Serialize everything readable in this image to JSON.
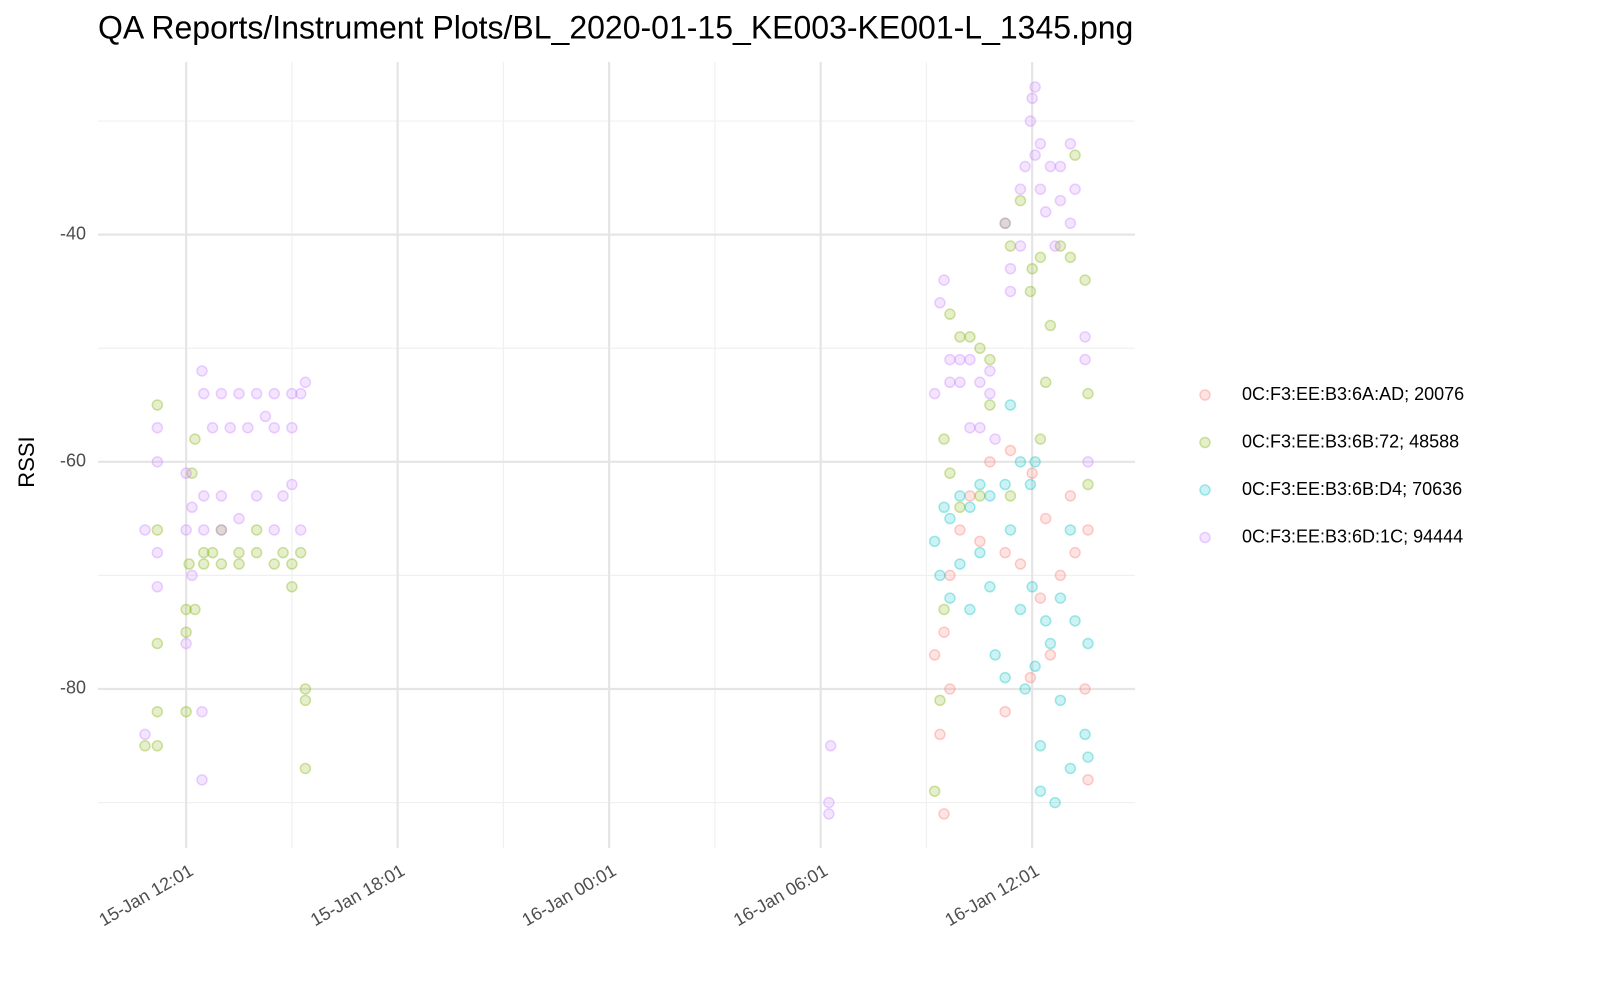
{
  "chart_data": {
    "type": "scatter",
    "title": "QA Reports/Instrument Plots/BL_2020-01-15_KE003-KE001-L_1345.png",
    "y_label": "RSSI",
    "xlim": [
      "15-Jan 09:31",
      "16-Jan 14:56"
    ],
    "xticks": [
      "15-Jan 12:01",
      "15-Jan 18:01",
      "16-Jan 00:01",
      "16-Jan 06:01",
      "16-Jan 12:01"
    ],
    "x_minor_ticks": [
      "15-Jan 15:01",
      "15-Jan 21:01",
      "16-Jan 03:01",
      "16-Jan 09:01"
    ],
    "ylim": [
      -94,
      -24.8
    ],
    "yticks": [
      -80,
      -60,
      -40
    ],
    "y_minor_ticks": [
      -90,
      -70,
      -50,
      -30
    ],
    "grid": true,
    "legend_position": "right",
    "series": [
      {
        "name": "0C:F3:EE:B3:6A:AD; 20076",
        "color": "#F8766D",
        "x": [
          "16-Jan 09:15",
          "16-Jan 09:24",
          "16-Jan 09:31",
          "16-Jan 09:31",
          "16-Jan 09:41",
          "16-Jan 09:41",
          "16-Jan 09:58",
          "16-Jan 10:15",
          "16-Jan 10:32",
          "16-Jan 10:49",
          "16-Jan 11:15",
          "16-Jan 11:15",
          "16-Jan 11:24",
          "16-Jan 11:41",
          "16-Jan 11:58",
          "16-Jan 12:01",
          "16-Jan 12:15",
          "16-Jan 12:24",
          "16-Jan 12:32",
          "16-Jan 12:49",
          "16-Jan 13:06",
          "16-Jan 13:14",
          "16-Jan 13:31",
          "16-Jan 13:36",
          "16-Jan 13:36"
        ],
        "values": [
          -77,
          -84,
          -91,
          -75,
          -80,
          -70,
          -66,
          -63,
          -67,
          -60,
          -82,
          -68,
          -59,
          -69,
          -79,
          -61,
          -72,
          -65,
          -77,
          -70,
          -63,
          -68,
          -80,
          -88,
          -66
        ]
      },
      {
        "name": "0C:F3:EE:B3:6B:72; 48588",
        "color": "#7CAE00",
        "x": [
          "15-Jan 10:51",
          "15-Jan 11:12",
          "15-Jan 11:12",
          "15-Jan 11:12",
          "15-Jan 11:12",
          "15-Jan 11:12",
          "15-Jan 12:01",
          "15-Jan 12:01",
          "15-Jan 12:01",
          "15-Jan 12:06",
          "15-Jan 12:11",
          "15-Jan 12:16",
          "15-Jan 12:16",
          "15-Jan 12:31",
          "15-Jan 12:31",
          "15-Jan 12:46",
          "15-Jan 13:01",
          "15-Jan 13:01",
          "15-Jan 13:31",
          "15-Jan 13:31",
          "15-Jan 14:01",
          "15-Jan 14:01",
          "15-Jan 14:31",
          "15-Jan 14:46",
          "15-Jan 15:01",
          "15-Jan 15:01",
          "15-Jan 15:16",
          "15-Jan 15:24",
          "15-Jan 15:24",
          "15-Jan 15:24",
          "16-Jan 09:15",
          "16-Jan 09:24",
          "16-Jan 09:31",
          "16-Jan 09:31",
          "16-Jan 09:41",
          "16-Jan 09:41",
          "16-Jan 09:58",
          "16-Jan 09:58",
          "16-Jan 10:15",
          "16-Jan 10:32",
          "16-Jan 10:32",
          "16-Jan 10:49",
          "16-Jan 10:49",
          "16-Jan 11:15",
          "16-Jan 11:24",
          "16-Jan 11:24",
          "16-Jan 11:41",
          "16-Jan 11:58",
          "16-Jan 12:01",
          "16-Jan 12:15",
          "16-Jan 12:15",
          "16-Jan 12:24",
          "16-Jan 12:32",
          "16-Jan 12:49",
          "16-Jan 13:06",
          "16-Jan 13:14",
          "16-Jan 13:31",
          "16-Jan 13:36",
          "16-Jan 13:36"
        ],
        "values": [
          -85,
          -55,
          -66,
          -76,
          -82,
          -85,
          -73,
          -75,
          -82,
          -69,
          -61,
          -58,
          -73,
          -68,
          -69,
          -68,
          -66,
          -69,
          -68,
          -69,
          -66,
          -68,
          -69,
          -68,
          -71,
          -69,
          -68,
          -80,
          -81,
          -87,
          -89,
          -81,
          -73,
          -58,
          -47,
          -61,
          -49,
          -64,
          -49,
          -50,
          -63,
          -51,
          -55,
          -39,
          -63,
          -41,
          -37,
          -45,
          -43,
          -42,
          -58,
          -53,
          -48,
          -41,
          -42,
          -33,
          -44,
          -54,
          -62
        ]
      },
      {
        "name": "0C:F3:EE:B3:6B:D4; 70636",
        "color": "#00BFC4",
        "x": [
          "16-Jan 09:15",
          "16-Jan 09:24",
          "16-Jan 09:31",
          "16-Jan 09:41",
          "16-Jan 09:41",
          "16-Jan 09:58",
          "16-Jan 09:58",
          "16-Jan 10:15",
          "16-Jan 10:15",
          "16-Jan 10:32",
          "16-Jan 10:32",
          "16-Jan 10:49",
          "16-Jan 10:49",
          "16-Jan 10:58",
          "16-Jan 11:15",
          "16-Jan 11:15",
          "16-Jan 11:24",
          "16-Jan 11:24",
          "16-Jan 11:41",
          "16-Jan 11:41",
          "16-Jan 11:49",
          "16-Jan 11:58",
          "16-Jan 12:01",
          "16-Jan 12:06",
          "16-Jan 12:06",
          "16-Jan 12:15",
          "16-Jan 12:15",
          "16-Jan 12:24",
          "16-Jan 12:32",
          "16-Jan 12:40",
          "16-Jan 12:49",
          "16-Jan 12:49",
          "16-Jan 13:06",
          "16-Jan 13:06",
          "16-Jan 13:14",
          "16-Jan 13:31",
          "16-Jan 13:36",
          "16-Jan 13:36"
        ],
        "values": [
          -67,
          -70,
          -64,
          -65,
          -72,
          -63,
          -69,
          -64,
          -73,
          -62,
          -68,
          -63,
          -71,
          -77,
          -62,
          -79,
          -55,
          -66,
          -60,
          -73,
          -80,
          -62,
          -71,
          -60,
          -78,
          -85,
          -89,
          -74,
          -76,
          -90,
          -72,
          -81,
          -66,
          -87,
          -74,
          -84,
          -86,
          -76
        ]
      },
      {
        "name": "0C:F3:EE:B3:6D:1C; 94444",
        "color": "#C77CFF",
        "x": [
          "15-Jan 10:51",
          "15-Jan 10:51",
          "15-Jan 11:12",
          "15-Jan 11:12",
          "15-Jan 11:12",
          "15-Jan 11:12",
          "15-Jan 12:01",
          "15-Jan 12:01",
          "15-Jan 12:01",
          "15-Jan 12:11",
          "15-Jan 12:11",
          "15-Jan 12:28",
          "15-Jan 12:28",
          "15-Jan 12:28",
          "15-Jan 12:31",
          "15-Jan 12:31",
          "15-Jan 12:31",
          "15-Jan 12:46",
          "15-Jan 13:01",
          "15-Jan 13:01",
          "15-Jan 13:01",
          "15-Jan 13:16",
          "15-Jan 13:31",
          "15-Jan 13:31",
          "15-Jan 13:46",
          "15-Jan 14:01",
          "15-Jan 14:01",
          "15-Jan 14:16",
          "15-Jan 14:31",
          "15-Jan 14:31",
          "15-Jan 14:31",
          "15-Jan 14:46",
          "15-Jan 15:01",
          "15-Jan 15:01",
          "15-Jan 15:01",
          "15-Jan 15:16",
          "15-Jan 15:16",
          "15-Jan 15:24",
          "16-Jan 06:15",
          "16-Jan 06:18",
          "16-Jan 06:15",
          "16-Jan 09:15",
          "16-Jan 09:24",
          "16-Jan 09:31",
          "16-Jan 09:41",
          "16-Jan 09:41",
          "16-Jan 09:58",
          "16-Jan 09:58",
          "16-Jan 10:15",
          "16-Jan 10:15",
          "16-Jan 10:32",
          "16-Jan 10:32",
          "16-Jan 10:49",
          "16-Jan 10:49",
          "16-Jan 10:58",
          "16-Jan 11:15",
          "16-Jan 11:24",
          "16-Jan 11:24",
          "16-Jan 11:41",
          "16-Jan 11:41",
          "16-Jan 11:49",
          "16-Jan 11:58",
          "16-Jan 12:01",
          "16-Jan 12:06",
          "16-Jan 12:06",
          "16-Jan 12:15",
          "16-Jan 12:15",
          "16-Jan 12:24",
          "16-Jan 12:32",
          "16-Jan 12:40",
          "16-Jan 12:49",
          "16-Jan 12:49",
          "16-Jan 13:06",
          "16-Jan 13:06",
          "16-Jan 13:14",
          "16-Jan 13:31",
          "16-Jan 13:31",
          "16-Jan 13:36"
        ],
        "values": [
          -66,
          -84,
          -57,
          -60,
          -68,
          -71,
          -61,
          -66,
          -76,
          -64,
          -70,
          -52,
          -82,
          -88,
          -54,
          -63,
          -66,
          -57,
          -54,
          -63,
          -66,
          -57,
          -54,
          -65,
          -57,
          -54,
          -63,
          -56,
          -54,
          -57,
          -66,
          -63,
          -54,
          -57,
          -62,
          -54,
          -66,
          -53,
          -90,
          -85,
          -91,
          -54,
          -46,
          -44,
          -51,
          -53,
          -51,
          -53,
          -51,
          -57,
          -53,
          -57,
          -52,
          -54,
          -58,
          -39,
          -43,
          -45,
          -36,
          -41,
          -34,
          -30,
          -28,
          -27,
          -33,
          -32,
          -36,
          -38,
          -34,
          -41,
          -34,
          -37,
          -32,
          -39,
          -36,
          -49,
          -51,
          -60
        ]
      }
    ]
  }
}
